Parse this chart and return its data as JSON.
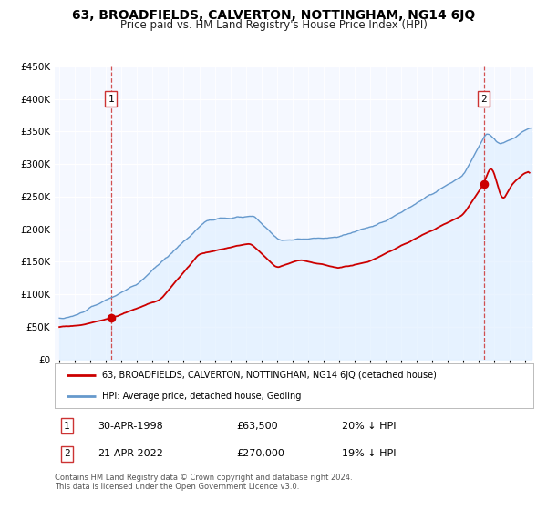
{
  "title": "63, BROADFIELDS, CALVERTON, NOTTINGHAM, NG14 6JQ",
  "subtitle": "Price paid vs. HM Land Registry's House Price Index (HPI)",
  "ylim": [
    0,
    450000
  ],
  "yticks": [
    0,
    50000,
    100000,
    150000,
    200000,
    250000,
    300000,
    350000,
    400000,
    450000
  ],
  "xlim_start": 1994.7,
  "xlim_end": 2025.5,
  "xticks": [
    1995,
    1996,
    1997,
    1998,
    1999,
    2000,
    2001,
    2002,
    2003,
    2004,
    2005,
    2006,
    2007,
    2008,
    2009,
    2010,
    2011,
    2012,
    2013,
    2014,
    2015,
    2016,
    2017,
    2018,
    2019,
    2020,
    2021,
    2022,
    2023,
    2024,
    2025
  ],
  "marker1_year": 1998.33,
  "marker1_value": 63500,
  "marker1_label": "1",
  "marker1_date": "30-APR-1998",
  "marker1_price": "£63,500",
  "marker1_hpi": "20% ↓ HPI",
  "marker2_year": 2022.31,
  "marker2_value": 270000,
  "marker2_label": "2",
  "marker2_date": "21-APR-2022",
  "marker2_price": "£270,000",
  "marker2_hpi": "19% ↓ HPI",
  "sold_color": "#cc0000",
  "hpi_color": "#6699cc",
  "hpi_fill_color": "#ddeeff",
  "plot_bg": "#f5f8ff",
  "grid_color": "#ddddee",
  "legend_label_sold": "63, BROADFIELDS, CALVERTON, NOTTINGHAM, NG14 6JQ (detached house)",
  "legend_label_hpi": "HPI: Average price, detached house, Gedling",
  "footer1": "Contains HM Land Registry data © Crown copyright and database right 2024.",
  "footer2": "This data is licensed under the Open Government Licence v3.0."
}
